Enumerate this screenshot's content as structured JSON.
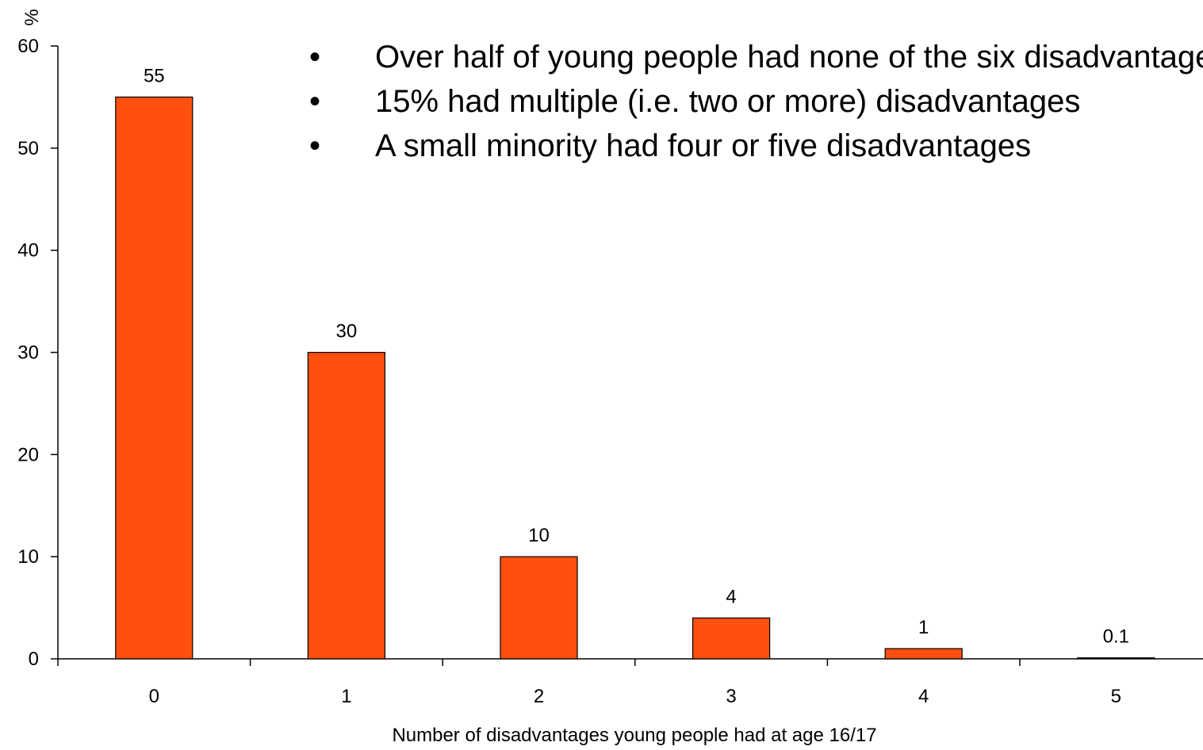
{
  "chart_data": {
    "type": "bar",
    "categories": [
      "0",
      "1",
      "2",
      "3",
      "4",
      "5"
    ],
    "values": [
      55,
      30,
      10,
      4,
      1,
      0.1
    ],
    "data_labels": [
      "55",
      "30",
      "10",
      "4",
      "1",
      "0.1"
    ],
    "title": "",
    "xlabel": "Number of disadvantages young people had at age 16/17",
    "ylabel": "%",
    "ylim": [
      0,
      60
    ],
    "yticks": [
      0,
      10,
      20,
      30,
      40,
      50,
      60
    ],
    "grid": false,
    "legend": "none",
    "bar_color": "#ff5010",
    "bar_edge_color": "#000000",
    "annotations": [
      "Over half of young people had none of the six disadvantages",
      "15% had multiple (i.e. two or more) disadvantages",
      "A small minority had four or five disadvantages"
    ]
  }
}
